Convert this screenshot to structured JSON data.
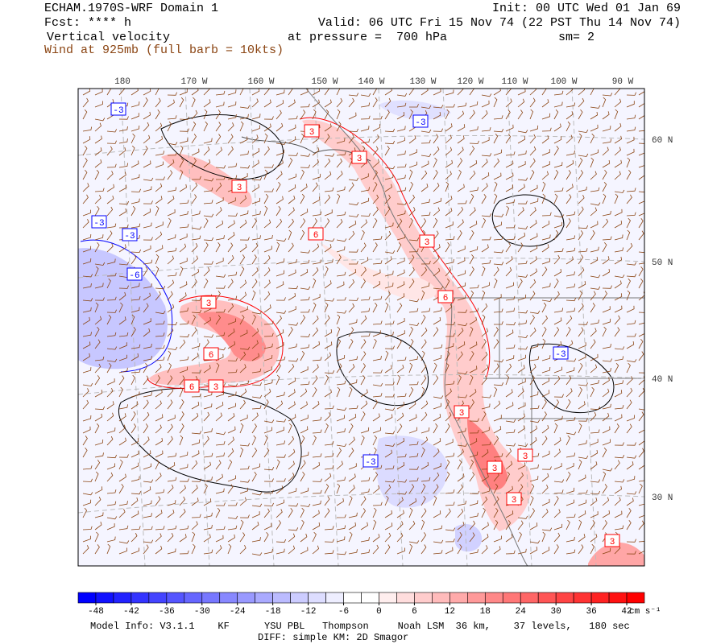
{
  "header": {
    "title": "ECHAM.1970S-WRF Domain 1",
    "init": "Init: 00 UTC Wed 01 Jan 69",
    "fcst": "Fcst: **** h",
    "valid": "Valid: 06 UTC Fri 15 Nov 74 (22 PST Thu 14 Nov 74)",
    "field": "Vertical velocity",
    "pressure": "at pressure =  700 hPa",
    "smoothing": "sm= 2",
    "wind": "Wind at 925mb (full barb = 10kts)"
  },
  "map": {
    "longitude_labels": [
      "180",
      "170 W",
      "160 W",
      "150 W",
      "140 W",
      "130 W",
      "120 W",
      "110 W",
      "100 W",
      "90 W"
    ],
    "latitude_labels": [
      "60 N",
      "50 N",
      "40 N",
      "30 N"
    ],
    "contour_labels": [
      "-3",
      "-3",
      "-3",
      "-3",
      "-6",
      "3",
      "3",
      "6",
      "3",
      "3",
      "6",
      "6",
      "3",
      "6",
      "3",
      "3",
      "-3",
      "-3",
      "3",
      "3",
      "3",
      "3"
    ],
    "negative_color": "#0000ff",
    "positive_color": "#ff0000",
    "barb_color": "#8b4513"
  },
  "colorbar": {
    "ticks": [
      -48,
      -42,
      -36,
      -30,
      -24,
      -18,
      -12,
      -6,
      0,
      6,
      12,
      18,
      24,
      30,
      36,
      42
    ],
    "units": "cm s⁻¹"
  },
  "footer": {
    "model_info": "Model Info: V3.1.1    KF      YSU PBL   Thompson     Noah LSM  36 km,    37 levels,   180 sec",
    "diff": "DIFF: simple KM: 2D Smagor"
  }
}
